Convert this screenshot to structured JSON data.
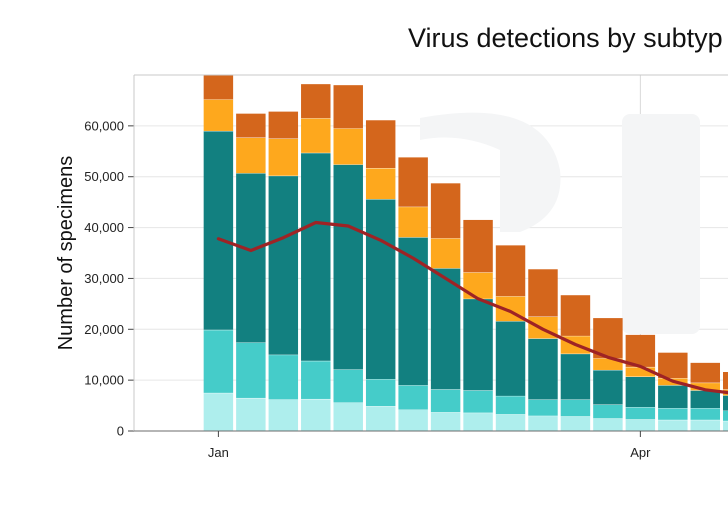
{
  "chart_data": {
    "type": "bar",
    "stacked": true,
    "title": "Virus detections by subtyp",
    "xlabel": "",
    "ylabel": "Number of specimens",
    "ylim": [
      0,
      70000
    ],
    "grid": true,
    "legend": "none",
    "yticks": [
      {
        "value": 0,
        "label": "0"
      },
      {
        "value": 10000,
        "label": "10,000"
      },
      {
        "value": 20000,
        "label": "20,000"
      },
      {
        "value": 30000,
        "label": "30,000"
      },
      {
        "value": 40000,
        "label": "40,000"
      },
      {
        "value": 50000,
        "label": "50,000"
      },
      {
        "value": 60000,
        "label": "60,000"
      }
    ],
    "xticks": [
      {
        "week": 1,
        "label": "Jan"
      },
      {
        "week": 14,
        "label": "Apr"
      }
    ],
    "vertical_line_week": 14,
    "week_range": [
      -1.6,
      16.7
    ],
    "weeks": [
      1,
      2,
      3,
      4,
      5,
      6,
      7,
      8,
      9,
      10,
      11,
      12,
      13,
      14,
      15,
      16,
      17
    ],
    "series": [
      {
        "color": "#aeeeed",
        "values": [
          7500,
          6500,
          6200,
          6300,
          5600,
          4900,
          4200,
          3700,
          3600,
          3300,
          3000,
          2900,
          2500,
          2300,
          2200,
          2200,
          2000
        ]
      },
      {
        "color": "#45ccc9",
        "values": [
          12400,
          10900,
          8800,
          7500,
          6500,
          5300,
          4800,
          4500,
          4400,
          3600,
          3200,
          3300,
          2700,
          2400,
          2300,
          2300,
          2000
        ]
      },
      {
        "color": "#128080",
        "values": [
          39100,
          33300,
          35200,
          40900,
          40300,
          35400,
          29100,
          23800,
          18000,
          14700,
          12000,
          9000,
          6800,
          6000,
          4500,
          3500,
          3000
        ]
      },
      {
        "color": "#fea81d",
        "values": [
          6200,
          7000,
          7300,
          6800,
          7100,
          6100,
          6000,
          5900,
          5200,
          4900,
          4300,
          3500,
          2300,
          1900,
          1400,
          1500,
          1200
        ]
      },
      {
        "color": "#d4661c",
        "values": [
          4800,
          4700,
          5300,
          6700,
          8500,
          9400,
          9700,
          10800,
          10300,
          10000,
          9300,
          8000,
          7900,
          6300,
          5000,
          3900,
          3400
        ]
      }
    ],
    "line": {
      "color": "#9e2325",
      "values": [
        37800,
        35500,
        38000,
        41000,
        40300,
        37500,
        34000,
        30000,
        26000,
        23500,
        20000,
        17000,
        14500,
        12700,
        9800,
        8100,
        7300
      ]
    }
  }
}
